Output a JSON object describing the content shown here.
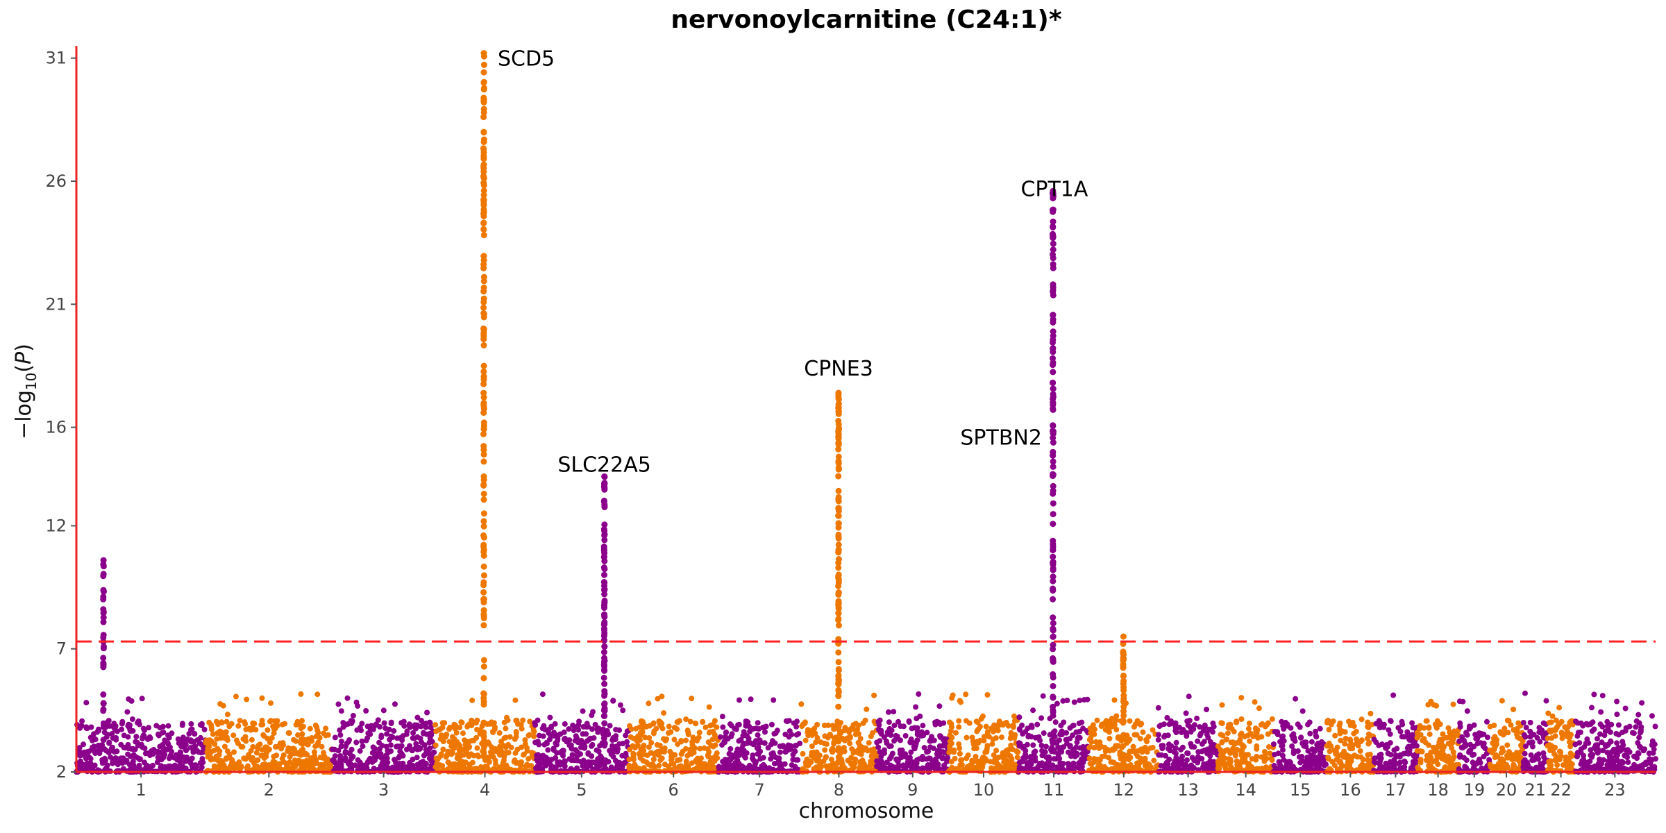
{
  "chart_data": {
    "type": "scatter",
    "subtype": "manhattan",
    "title": "nervonoylcarnitine (C24:1)*",
    "xlabel": "chromosome",
    "ylabel": "−log10(P)",
    "ylim": [
      2,
      31.5
    ],
    "y_ticks": [
      2,
      7,
      12,
      16,
      21,
      26,
      31
    ],
    "threshold": 7.3,
    "grid": false,
    "colors": {
      "odd": "#8B008B",
      "even": "#EE7700",
      "threshold": "#FF2222",
      "axis": "#EE2222"
    },
    "chromosomes": [
      {
        "label": "1",
        "start": 0,
        "end": 248
      },
      {
        "label": "2",
        "start": 248,
        "end": 490
      },
      {
        "label": "3",
        "start": 490,
        "end": 688
      },
      {
        "label": "4",
        "start": 688,
        "end": 878
      },
      {
        "label": "5",
        "start": 878,
        "end": 1059
      },
      {
        "label": "6",
        "start": 1059,
        "end": 1230
      },
      {
        "label": "7",
        "start": 1230,
        "end": 1389
      },
      {
        "label": "8",
        "start": 1389,
        "end": 1534
      },
      {
        "label": "9",
        "start": 1534,
        "end": 1672
      },
      {
        "label": "10",
        "start": 1672,
        "end": 1806
      },
      {
        "label": "11",
        "start": 1806,
        "end": 1941
      },
      {
        "label": "12",
        "start": 1941,
        "end": 2074
      },
      {
        "label": "13",
        "start": 2074,
        "end": 2188
      },
      {
        "label": "14",
        "start": 2188,
        "end": 2295
      },
      {
        "label": "15",
        "start": 2295,
        "end": 2397
      },
      {
        "label": "16",
        "start": 2397,
        "end": 2487
      },
      {
        "label": "17",
        "start": 2487,
        "end": 2570
      },
      {
        "label": "18",
        "start": 2570,
        "end": 2650
      },
      {
        "label": "19",
        "start": 2650,
        "end": 2709
      },
      {
        "label": "20",
        "start": 2709,
        "end": 2773
      },
      {
        "label": "21",
        "start": 2773,
        "end": 2820
      },
      {
        "label": "22",
        "start": 2820,
        "end": 2871
      },
      {
        "label": "23",
        "start": 2871,
        "end": 3027
      }
    ],
    "peaks": [
      {
        "chr": "1",
        "pos": 52,
        "top": 10.6,
        "count": 30
      },
      {
        "chr": "4",
        "pos": 93,
        "top": 31.2,
        "count": 140,
        "gene": "SCD5"
      },
      {
        "chr": "5",
        "pos": 134,
        "top": 14.0,
        "count": 90,
        "gene": "SLC22A5"
      },
      {
        "chr": "8",
        "pos": 72,
        "top": 17.4,
        "count": 110,
        "gene": "CPNE3"
      },
      {
        "chr": "11",
        "pos": 66,
        "top": 25.6,
        "count": 120,
        "gene": "CPT1A"
      },
      {
        "chr": "11",
        "pos": 66,
        "top": 15.3,
        "count": 0,
        "gene": "SPTBN2"
      },
      {
        "chr": "12",
        "pos": 66,
        "top": 7.5,
        "count": 30
      }
    ],
    "gene_labels": [
      "SCD5",
      "SLC22A5",
      "CPNE3",
      "CPT1A",
      "SPTBN2"
    ]
  }
}
